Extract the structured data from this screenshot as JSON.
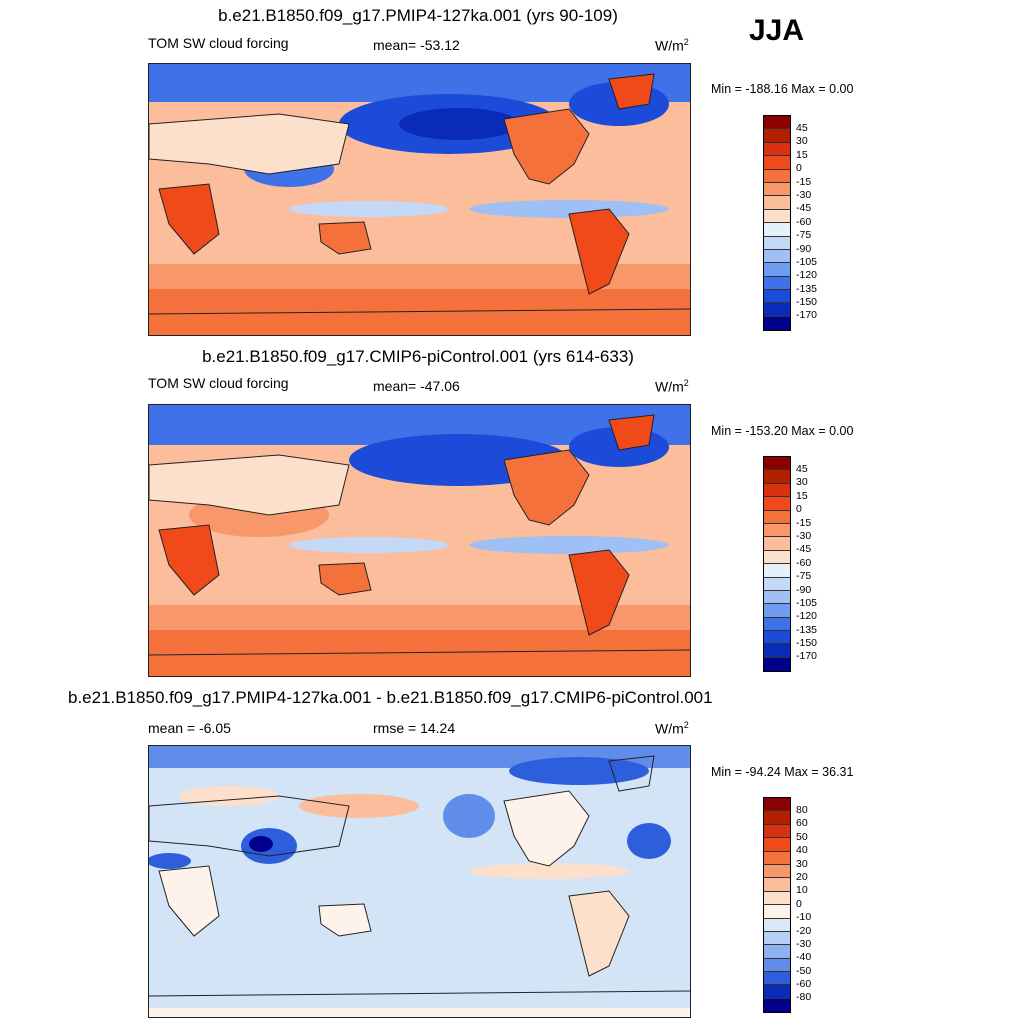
{
  "season": "JJA",
  "units_base": "W/m",
  "units_exp": "2",
  "panels": [
    {
      "title": "b.e21.B1850.f09_g17.PMIP4-127ka.001 (yrs 90-109)",
      "left_label": "TOM SW cloud forcing",
      "mid_label": "mean= -53.12",
      "minmax": "Min = -188.16 Max =    0.00",
      "ticks": [
        "45",
        "30",
        "15",
        "0",
        "-15",
        "-30",
        "-45",
        "-60",
        "-75",
        "-90",
        "-105",
        "-120",
        "-135",
        "-150",
        "-170"
      ],
      "colors": [
        "#8b0000",
        "#b22000",
        "#d83010",
        "#f04a1a",
        "#f5713c",
        "#f8976a",
        "#fbbd9b",
        "#fde0cb",
        "#e6f0fb",
        "#c4d8f7",
        "#9ec0f5",
        "#6e9cf0",
        "#3f72e8",
        "#1b4bd8",
        "#0a2bb8",
        "#00008b"
      ],
      "ocean_color": "#fbbd9b"
    },
    {
      "title": "b.e21.B1850.f09_g17.CMIP6-piControl.001 (yrs 614-633)",
      "left_label": "TOM SW cloud forcing",
      "mid_label": "mean= -47.06",
      "minmax": "Min = -153.20 Max =    0.00",
      "ticks": [
        "45",
        "30",
        "15",
        "0",
        "-15",
        "-30",
        "-45",
        "-60",
        "-75",
        "-90",
        "-105",
        "-120",
        "-135",
        "-150",
        "-170"
      ],
      "colors": [
        "#8b0000",
        "#b22000",
        "#d83010",
        "#f04a1a",
        "#f5713c",
        "#f8976a",
        "#fbbd9b",
        "#fde0cb",
        "#e6f0fb",
        "#c4d8f7",
        "#9ec0f5",
        "#6e9cf0",
        "#3f72e8",
        "#1b4bd8",
        "#0a2bb8",
        "#00008b"
      ],
      "ocean_color": "#fbbd9b"
    },
    {
      "title": "b.e21.B1850.f09_g17.PMIP4-127ka.001 - b.e21.B1850.f09_g17.CMIP6-piControl.001",
      "left_label": "mean =  -6.05",
      "mid_label": "rmse =  14.24",
      "minmax": "Min = -94.24 Max =  36.31",
      "ticks": [
        "80",
        "60",
        "50",
        "40",
        "30",
        "20",
        "10",
        "0",
        "-10",
        "-20",
        "-30",
        "-40",
        "-50",
        "-60",
        "-80"
      ],
      "colors": [
        "#8b0000",
        "#b22000",
        "#d83010",
        "#f04a1a",
        "#f5713c",
        "#f8976a",
        "#fbbd9b",
        "#fde0cb",
        "#fdf3ea",
        "#dbe8f8",
        "#b6cff5",
        "#8eb2f1",
        "#5f8de9",
        "#2d5fdc",
        "#0a2bb8",
        "#00008b"
      ],
      "ocean_color": "#d4e4f7"
    }
  ]
}
